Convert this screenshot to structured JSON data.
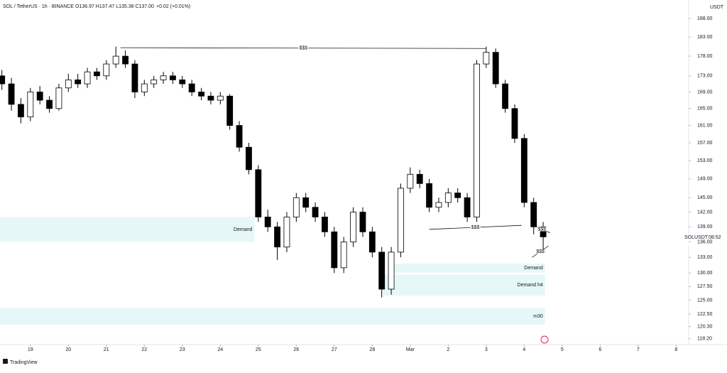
{
  "header": {
    "symbol": "SOL / TetherUS · 1h · BINANCE",
    "ohlc": "O136.97 H137.47 L135.38 C137.00",
    "change": "+0.02 (+0.01%)",
    "currency": "USDT",
    "ticker_tag": "SOLUSDT",
    "countdown": "08:52",
    "brand": "TradingView"
  },
  "chart_data": {
    "type": "candlestick",
    "log_scale": true,
    "up_color": "#ffffff",
    "down_color": "#000000",
    "border_color": "#000000",
    "ylim": [
      117.2,
      193.1
    ],
    "xlim": [
      -0.8,
      17.33
    ],
    "yticks": [
      {
        "value": 188,
        "label": "188.00"
      },
      {
        "value": 183,
        "label": "183.00"
      },
      {
        "value": 178,
        "label": "178.00"
      },
      {
        "value": 173,
        "label": "173.00"
      },
      {
        "value": 169,
        "label": "169.00"
      },
      {
        "value": 165,
        "label": "165.00"
      },
      {
        "value": 161,
        "label": "161.00"
      },
      {
        "value": 157,
        "label": "157.00"
      },
      {
        "value": 153,
        "label": "153.00"
      },
      {
        "value": 149,
        "label": "149.00"
      },
      {
        "value": 145,
        "label": "145.00"
      },
      {
        "value": 142,
        "label": "142.00"
      },
      {
        "value": 139,
        "label": "139.00"
      },
      {
        "value": 136,
        "label": "136.00"
      },
      {
        "value": 133,
        "label": "133.00"
      },
      {
        "value": 130,
        "label": "130.00"
      },
      {
        "value": 127.5,
        "label": "127.50"
      },
      {
        "value": 125,
        "label": "125.00"
      },
      {
        "value": 122.5,
        "label": "122.50"
      },
      {
        "value": 120.3,
        "label": "120.30"
      },
      {
        "value": 118.2,
        "label": "118.20"
      }
    ],
    "xticks": [
      {
        "value": 0,
        "label": "19"
      },
      {
        "value": 1,
        "label": "20"
      },
      {
        "value": 2,
        "label": "21"
      },
      {
        "value": 3,
        "label": "22"
      },
      {
        "value": 4,
        "label": "23"
      },
      {
        "value": 5,
        "label": "24"
      },
      {
        "value": 6,
        "label": "25"
      },
      {
        "value": 7,
        "label": "26"
      },
      {
        "value": 8,
        "label": "27"
      },
      {
        "value": 9,
        "label": "28"
      },
      {
        "value": 10,
        "label": "Mar"
      },
      {
        "value": 11,
        "label": "2"
      },
      {
        "value": 12,
        "label": "3"
      },
      {
        "value": 13,
        "label": "4"
      },
      {
        "value": 14,
        "label": "5"
      },
      {
        "value": 15,
        "label": "6"
      },
      {
        "value": 16,
        "label": "7"
      },
      {
        "value": 17,
        "label": "8"
      }
    ],
    "x": [
      -0.75,
      -0.5,
      -0.25,
      0,
      0.25,
      0.5,
      0.75,
      1,
      1.25,
      1.5,
      1.75,
      2,
      2.25,
      2.5,
      2.75,
      3,
      3.25,
      3.5,
      3.75,
      4,
      4.25,
      4.5,
      4.75,
      5,
      5.25,
      5.5,
      5.75,
      6,
      6.25,
      6.5,
      6.75,
      7,
      7.25,
      7.5,
      7.75,
      8,
      8.25,
      8.5,
      8.75,
      9,
      9.25,
      9.5,
      9.75,
      10,
      10.25,
      10.5,
      10.75,
      11,
      11.25,
      11.5,
      11.75,
      12,
      12.25,
      12.5,
      12.75,
      13,
      13.25,
      13.5
    ],
    "open": [
      173,
      171,
      166,
      163,
      169,
      167,
      165,
      170,
      172,
      171,
      174,
      173,
      176,
      178,
      176,
      169,
      171,
      172,
      173,
      172,
      171,
      169,
      168,
      167,
      168,
      161,
      156,
      151,
      141,
      139,
      135,
      141,
      145,
      143,
      141,
      138,
      131,
      136,
      142,
      138,
      134,
      127,
      134,
      147,
      150,
      148,
      143,
      144,
      146,
      145,
      141,
      176,
      179,
      171,
      165,
      158,
      144,
      139
    ],
    "high": [
      174.5,
      172.5,
      167.5,
      170,
      170.5,
      168,
      171,
      173.5,
      173.5,
      175,
      175,
      177,
      180.5,
      179.5,
      177,
      172,
      173,
      174,
      174,
      173,
      172,
      170,
      169,
      169,
      168.5,
      162,
      157,
      152,
      142.5,
      140,
      142,
      146,
      146,
      144,
      142,
      139,
      137,
      143,
      143,
      139,
      135,
      135,
      148,
      151.5,
      151,
      149,
      145,
      147,
      147,
      146,
      177,
      180.5,
      180,
      172,
      166,
      159,
      145,
      140
    ],
    "low": [
      169.5,
      164.5,
      161.5,
      162,
      166,
      164,
      164.5,
      169,
      170,
      170,
      172,
      172,
      175,
      175,
      167.5,
      168,
      170,
      171,
      171,
      170,
      168,
      167,
      166,
      166,
      160,
      155,
      150,
      140,
      138,
      132.5,
      134,
      140,
      142,
      140,
      137,
      130,
      130,
      135,
      137,
      133,
      125.5,
      126,
      133,
      146,
      147,
      142,
      142,
      143,
      144,
      140,
      140,
      175,
      170,
      164,
      157,
      143,
      137.5,
      134.5
    ],
    "close": [
      171,
      166,
      163,
      169,
      167,
      165,
      170,
      172,
      171,
      174,
      173,
      176,
      178,
      176,
      169,
      171,
      172,
      173,
      172,
      171,
      169,
      168,
      167,
      168,
      161,
      156,
      151,
      141,
      139,
      135,
      141,
      145,
      143,
      141,
      138,
      131,
      136,
      142,
      138,
      134,
      127,
      134,
      147,
      150,
      148,
      143,
      144,
      146,
      145,
      141,
      176,
      179,
      171,
      165,
      158,
      144,
      139,
      137
    ],
    "zones": [
      {
        "label": "Demand",
        "x0": -0.8,
        "x1": 5.9,
        "y0": 141,
        "y1": 136,
        "color": "#e6f7f7"
      },
      {
        "label": "Demand",
        "x0": 9.44,
        "x1": 13.55,
        "y0": 131.8,
        "y1": 130.1,
        "color": "#e6f7f7"
      },
      {
        "label": "Demand h4",
        "x0": 9.29,
        "x1": 13.55,
        "y0": 129.7,
        "y1": 125.8,
        "color": "#e6f7f7"
      },
      {
        "label": "m30",
        "x0": -0.8,
        "x1": 13.55,
        "y0": 123.6,
        "y1": 120.6,
        "color": "#e6f7f7"
      }
    ],
    "lines": [
      {
        "label": "$$$",
        "x0": 2.37,
        "x1": 12,
        "y0": 180.2,
        "y1": 180
      },
      {
        "label": "$$$",
        "x0": 10.5,
        "x1": 12.93,
        "y0": 138.5,
        "y1": 139.3
      },
      {
        "label": "$$$",
        "x0": 13.25,
        "x1": 13.68,
        "y0": 139.3,
        "y1": 137.8
      },
      {
        "label": "$$$",
        "x0": 13.21,
        "x1": 13.64,
        "y0": 133,
        "y1": 135.2
      }
    ]
  }
}
